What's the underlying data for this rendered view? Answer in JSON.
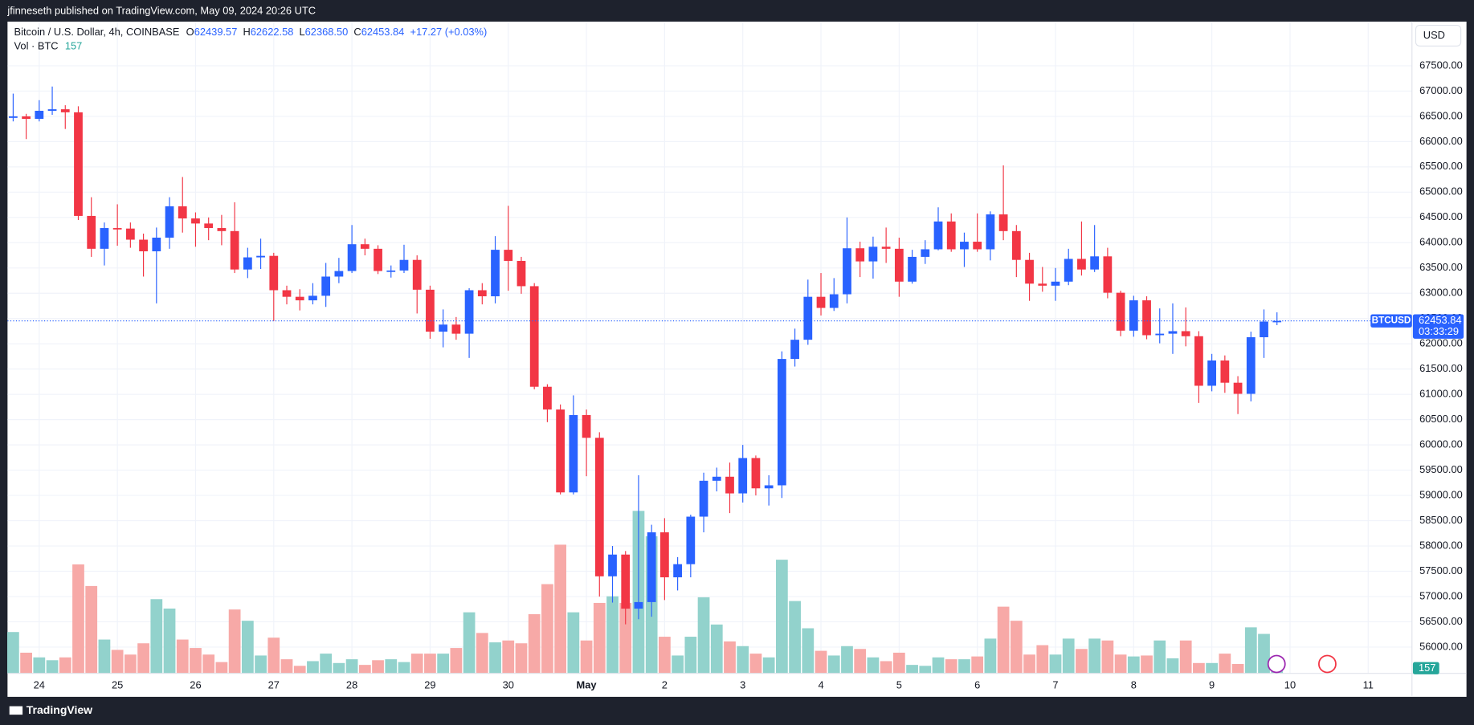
{
  "header": {
    "published": "jfinneseth published on TradingView.com, May 09, 2024 20:26 UTC",
    "currency": "USD",
    "footer": "TradingView"
  },
  "chart_data": {
    "type": "candlestick",
    "legend": {
      "symbol": "Bitcoin / U.S. Dollar, 4h, COINBASE",
      "ohlc_letters": [
        "O",
        "H",
        "L",
        "C"
      ],
      "open": "62439.57",
      "high": "62622.58",
      "low": "62368.50",
      "close": "62453.84",
      "change": "+17.27 (+0.03%)",
      "volume_label": "Vol · BTC"
    },
    "price_tag": {
      "symbol": "BTCUSD",
      "countdown": "03:33:29"
    },
    "up_color": "#2962ff",
    "down_color": "#f23645",
    "volume_up_color": "#92d2cc",
    "volume_down_color": "#f7a9a7",
    "categories": [
      null,
      null,
      "24",
      null,
      null,
      null,
      null,
      null,
      "25",
      null,
      null,
      null,
      null,
      null,
      "26",
      null,
      null,
      null,
      null,
      null,
      "27",
      null,
      null,
      null,
      null,
      null,
      "28",
      null,
      null,
      null,
      null,
      null,
      "29",
      null,
      null,
      null,
      null,
      null,
      "30",
      null,
      null,
      null,
      null,
      null,
      "May",
      null,
      null,
      null,
      null,
      null,
      "2",
      null,
      null,
      null,
      null,
      null,
      "3",
      null,
      null,
      null,
      null,
      null,
      "4",
      null,
      null,
      null,
      null,
      null,
      "5",
      null,
      null,
      null,
      null,
      null,
      "6",
      null,
      null,
      null,
      null,
      null,
      "7",
      null,
      null,
      null,
      null,
      null,
      "8",
      null,
      null,
      null,
      null,
      null,
      "9",
      null,
      null,
      null,
      null,
      null,
      "10",
      null,
      null,
      null,
      null,
      null,
      "11",
      null
    ],
    "open": [
      66470,
      66500,
      66450,
      66610,
      66640,
      66580,
      64530,
      63880,
      64290,
      64280,
      64060,
      63830,
      64100,
      64720,
      64480,
      64380,
      64290,
      64230,
      63470,
      63710,
      63740,
      63060,
      62930,
      62860,
      62950,
      63330,
      63440,
      63970,
      63880,
      63440,
      63450,
      63660,
      63070,
      62240,
      62380,
      62200,
      63060,
      62940,
      63860,
      63640,
      63140,
      61150,
      60700,
      59060,
      60590,
      60140,
      57400,
      57830,
      56760,
      56890,
      58270,
      57380,
      57640,
      58580,
      59290,
      59370,
      59040,
      59740,
      59140,
      59200,
      61700,
      62080,
      62930,
      62710,
      62980,
      63890,
      63630,
      63920,
      63880,
      63230,
      63720,
      63870,
      64420,
      63870,
      64020,
      63870,
      64560,
      64230,
      63660,
      63190,
      63150,
      63230,
      63680,
      63470,
      63730,
      63010,
      62260,
      62860,
      62170,
      62200,
      62250,
      62150,
      61170,
      61670,
      61230,
      61010,
      62130,
      62439.57,
      null,
      null,
      null,
      null,
      null,
      null,
      null,
      null
    ],
    "high": [
      66950,
      66550,
      66820,
      67090,
      66720,
      66700,
      64900,
      64400,
      64760,
      64400,
      64180,
      64300,
      64900,
      65300,
      64600,
      64500,
      64550,
      64800,
      63900,
      64080,
      63800,
      63150,
      63080,
      63200,
      63600,
      63700,
      64350,
      64080,
      63950,
      63550,
      63960,
      63750,
      63150,
      62680,
      62530,
      63100,
      63200,
      64130,
      64730,
      63720,
      63200,
      61200,
      60800,
      60980,
      60700,
      60250,
      58000,
      57900,
      59400,
      58420,
      58550,
      57780,
      58620,
      59450,
      59550,
      59650,
      60000,
      59790,
      59400,
      61850,
      62300,
      63270,
      63400,
      63300,
      64500,
      64020,
      64120,
      64300,
      64100,
      63860,
      64050,
      64700,
      64580,
      64200,
      64580,
      64620,
      65530,
      64350,
      63800,
      63520,
      63500,
      63880,
      64420,
      64350,
      63900,
      63050,
      62950,
      62940,
      62700,
      62800,
      62720,
      62250,
      61800,
      61770,
      61360,
      62240,
      62680,
      62622.58,
      null,
      null,
      null,
      null,
      null,
      null,
      null,
      null
    ],
    "low": [
      66400,
      66050,
      66400,
      66530,
      66250,
      64450,
      63720,
      63550,
      63940,
      63900,
      63330,
      62800,
      63880,
      64200,
      63920,
      64050,
      63950,
      63400,
      63300,
      63480,
      62450,
      62780,
      62660,
      62780,
      62730,
      63200,
      63400,
      63750,
      63380,
      63310,
      63400,
      62600,
      62100,
      61930,
      62080,
      61720,
      62780,
      62800,
      63050,
      62990,
      61100,
      60450,
      59020,
      59020,
      59380,
      57000,
      56880,
      56450,
      56550,
      56600,
      56930,
      57120,
      57380,
      58270,
      59080,
      58650,
      58860,
      59000,
      58800,
      58950,
      61550,
      61980,
      62560,
      62650,
      62800,
      63320,
      63290,
      63600,
      62930,
      63190,
      63580,
      63850,
      63820,
      63520,
      63820,
      63650,
      64050,
      63320,
      62850,
      63030,
      62850,
      63160,
      63350,
      63420,
      62900,
      62150,
      62140,
      62090,
      62010,
      61800,
      61950,
      60830,
      61060,
      61030,
      60610,
      60860,
      61720,
      62368.5,
      null,
      null,
      null,
      null,
      null,
      null,
      null,
      null
    ],
    "close": [
      66500,
      66450,
      66610,
      66640,
      66580,
      64530,
      63880,
      64290,
      64280,
      64060,
      63830,
      64100,
      64720,
      64480,
      64380,
      64290,
      64230,
      63470,
      63710,
      63740,
      63060,
      62930,
      62860,
      62950,
      63330,
      63440,
      63970,
      63880,
      63440,
      63450,
      63660,
      63070,
      62240,
      62380,
      62200,
      63060,
      62940,
      63860,
      63640,
      63140,
      61150,
      60700,
      59060,
      60590,
      60140,
      57400,
      57830,
      56760,
      56890,
      58270,
      57380,
      57640,
      58580,
      59290,
      59370,
      59040,
      59740,
      59140,
      59200,
      61700,
      62080,
      62930,
      62710,
      62980,
      63890,
      63630,
      63920,
      63880,
      63230,
      63720,
      63870,
      64420,
      63870,
      64020,
      63870,
      64560,
      64230,
      63660,
      63190,
      63150,
      63230,
      63680,
      63470,
      63730,
      63010,
      62260,
      62860,
      62170,
      62200,
      62250,
      62150,
      61170,
      61670,
      61230,
      61010,
      62130,
      62439.57,
      62453.84,
      null,
      null,
      null,
      null,
      null,
      null,
      null,
      null
    ],
    "volume": [
      1364,
      682,
      527,
      434,
      527,
      3596,
      2883,
      1116,
      775,
      620,
      992,
      2449,
      2139,
      1116,
      837,
      620,
      372,
      2108,
      1736,
      589,
      1178,
      465,
      248,
      403,
      651,
      341,
      465,
      279,
      434,
      465,
      372,
      651,
      651,
      651,
      837,
      2015,
      1333,
      1023,
      1085,
      992,
      1953,
      2945,
      4247,
      2015,
      1085,
      2325,
      2542,
      2325,
      5363,
      4526,
      1209,
      589,
      1209,
      2511,
      1612,
      1054,
      899,
      651,
      527,
      3751,
      2387,
      1488,
      744,
      589,
      899,
      806,
      527,
      403,
      682,
      279,
      248,
      527,
      465,
      465,
      558,
      1147,
      2201,
      1736,
      620,
      930,
      620,
      1147,
      806,
      1147,
      1085,
      620,
      558,
      589,
      1085,
      496,
      1085,
      341,
      341,
      651,
      310,
      1519,
      1302,
      157,
      null,
      null,
      null,
      null,
      null,
      null,
      null,
      null
    ],
    "ylim": [
      55480,
      68356
    ],
    "yticks": [
      {
        "value": 56000,
        "label": "56000.00"
      },
      {
        "value": 56500,
        "label": "56500.00"
      },
      {
        "value": 57000,
        "label": "57000.00"
      },
      {
        "value": 57500,
        "label": "57500.00"
      },
      {
        "value": 58000,
        "label": "58000.00"
      },
      {
        "value": 58500,
        "label": "58500.00"
      },
      {
        "value": 59000,
        "label": "59000.00"
      },
      {
        "value": 59500,
        "label": "59500.00"
      },
      {
        "value": 60000,
        "label": "60000.00"
      },
      {
        "value": 60500,
        "label": "60500.00"
      },
      {
        "value": 61000,
        "label": "61000.00"
      },
      {
        "value": 61500,
        "label": "61500.00"
      },
      {
        "value": 62000,
        "label": "62000.00"
      },
      {
        "value": 62500,
        "label": "62500.00"
      },
      {
        "value": 63000,
        "label": "63000.00"
      },
      {
        "value": 63500,
        "label": "63500.00"
      },
      {
        "value": 64000,
        "label": "64000.00"
      },
      {
        "value": 64500,
        "label": "64500.00"
      },
      {
        "value": 65000,
        "label": "65000.00"
      },
      {
        "value": 65500,
        "label": "65500.00"
      },
      {
        "value": 66000,
        "label": "66000.00"
      },
      {
        "value": 66500,
        "label": "66500.00"
      },
      {
        "value": 67000,
        "label": "67000.00"
      },
      {
        "value": 67500,
        "label": "67500.00"
      }
    ],
    "grid": true
  }
}
